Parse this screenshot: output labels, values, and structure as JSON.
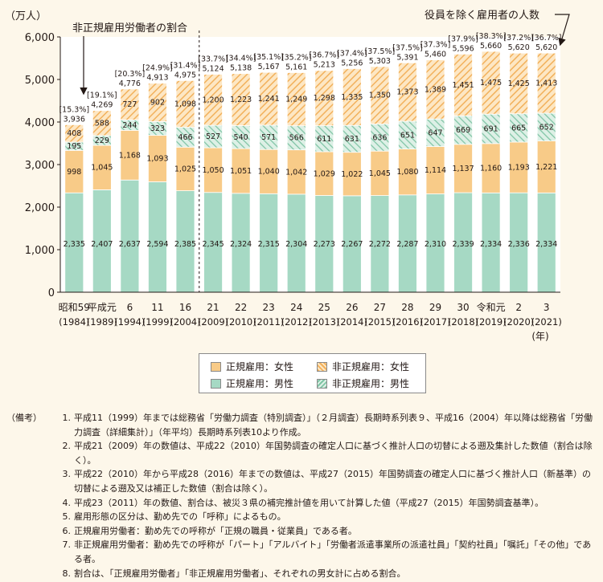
{
  "chart_data": {
    "type": "bar",
    "stacked": true,
    "ylabel": "（万人）",
    "xlabel_suffix": "(年)",
    "ylim": [
      0,
      6000
    ],
    "yticks": [
      "0",
      "1,000",
      "2,000",
      "3,000",
      "4,000",
      "5,000",
      "6,000"
    ],
    "grid": false,
    "categories": [
      [
        "昭和59",
        "(1984)"
      ],
      [
        "平成元",
        "(1989)"
      ],
      [
        "6",
        "(1994)"
      ],
      [
        "11",
        "(1999)"
      ],
      [
        "16",
        "(2004)"
      ],
      [
        "21",
        "(2009)"
      ],
      [
        "22",
        "(2010)"
      ],
      [
        "23",
        "(2011)"
      ],
      [
        "24",
        "(2012)"
      ],
      [
        "25",
        "(2013)"
      ],
      [
        "26",
        "(2014)"
      ],
      [
        "27",
        "(2015)"
      ],
      [
        "28",
        "(2016)"
      ],
      [
        "29",
        "(2017)"
      ],
      [
        "30",
        "(2018)"
      ],
      [
        "令和元",
        "(2019)"
      ],
      [
        "2",
        "(2020)"
      ],
      [
        "3",
        "(2021)"
      ]
    ],
    "series": [
      {
        "name": "正規雇用：男性",
        "color": "#a6d9c4",
        "pattern": "solid",
        "values": [
          2335,
          2407,
          2637,
          2594,
          2385,
          2345,
          2324,
          2315,
          2304,
          2273,
          2267,
          2272,
          2287,
          2310,
          2339,
          2334,
          2336,
          2334
        ],
        "labels": [
          "2,335",
          "2,407",
          "2,637",
          "2,594",
          "2,385",
          "2,345",
          "2,324",
          "2,315",
          "2,304",
          "2,273",
          "2,267",
          "2,272",
          "2,287",
          "2,310",
          "2,339",
          "2,334",
          "2,336",
          "2,334"
        ]
      },
      {
        "name": "正規雇用：女性",
        "color": "#f8cb88",
        "pattern": "solid",
        "values": [
          998,
          1045,
          1168,
          1093,
          1025,
          1050,
          1051,
          1040,
          1042,
          1029,
          1022,
          1045,
          1080,
          1114,
          1137,
          1160,
          1193,
          1221
        ],
        "labels": [
          "998",
          "1,045",
          "1,168",
          "1,093",
          "1,025",
          "1,050",
          "1,051",
          "1,040",
          "1,042",
          "1,029",
          "1,022",
          "1,045",
          "1,080",
          "1,114",
          "1,137",
          "1,160",
          "1,193",
          "1,221"
        ]
      },
      {
        "name": "非正規雇用：男性",
        "color": "#a6d9c4",
        "pattern": "hatch",
        "values": [
          195,
          229,
          244,
          323,
          466,
          527,
          540,
          571,
          566,
          611,
          631,
          636,
          651,
          647,
          669,
          691,
          665,
          652
        ],
        "labels": [
          "195",
          "229",
          "244",
          "323",
          "466",
          "527",
          "540",
          "571",
          "566",
          "611",
          "631",
          "636",
          "651",
          "647",
          "669",
          "691",
          "665",
          "652"
        ]
      },
      {
        "name": "非正規雇用：女性",
        "color": "#f8cb88",
        "pattern": "hatch",
        "values": [
          408,
          588,
          727,
          902,
          1098,
          1200,
          1223,
          1241,
          1249,
          1298,
          1335,
          1350,
          1373,
          1389,
          1451,
          1475,
          1425,
          1413
        ],
        "labels": [
          "408",
          "588",
          "727",
          "902",
          "1,098",
          "1,200",
          "1,223",
          "1,241",
          "1,249",
          "1,298",
          "1,335",
          "1,350",
          "1,373",
          "1,389",
          "1,451",
          "1,475",
          "1,425",
          "1,413"
        ]
      }
    ],
    "totals": [
      3936,
      4269,
      4776,
      4913,
      4975,
      5124,
      5138,
      5167,
      5161,
      5213,
      5256,
      5303,
      5391,
      5460,
      5596,
      5660,
      5620,
      5620
    ],
    "total_labels": [
      "3,936",
      "4,269",
      "4,776",
      "4,913",
      "4,975",
      "5,124",
      "5,138",
      "5,167",
      "5,161",
      "5,213",
      "5,256",
      "5,303",
      "5,391",
      "5,460",
      "5,596",
      "5,660",
      "5,620",
      "5,620"
    ],
    "ratio_labels": [
      "[15.3%]",
      "[19.1%]",
      "[20.3%]",
      "[24.9%]",
      "[31.4%]",
      "[33.7%]",
      "[34.4%]",
      "[35.1%]",
      "[35.2%]",
      "[36.7%]",
      "[37.4%]",
      "[37.5%]",
      "[37.5%]",
      "[37.3%]",
      "[37.9%]",
      "[38.3%]",
      "[37.2%]",
      "[36.7%]"
    ],
    "annotations": {
      "ratio": "非正規雇用労働者の割合",
      "total": "役員を除く雇用者の人数"
    },
    "divider_after_index": 4
  },
  "legend": {
    "items": [
      {
        "label": "正規雇用：女性",
        "color": "#f8cb88",
        "pattern": "solid"
      },
      {
        "label": "非正規雇用：女性",
        "color": "#f8cb88",
        "pattern": "hatch"
      },
      {
        "label": "正規雇用：男性",
        "color": "#a6d9c4",
        "pattern": "solid"
      },
      {
        "label": "非正規雇用：男性",
        "color": "#a6d9c4",
        "pattern": "hatch"
      }
    ]
  },
  "notes": {
    "heading": "（備考）",
    "items": [
      {
        "num": "1.",
        "text": "平成11（1999）年までは総務省「労働力調査（特別調査）」（２月調査）長期時系列表９、平成16（2004）年以降は総務省「労働力調査（詳細集計）」（年平均）長期時系列表10より作成。"
      },
      {
        "num": "2.",
        "text": "平成21（2009）年の数値は、平成22（2010）年国勢調査の確定人口に基づく推計人口の切替による遡及集計した数値（割合は除く）。"
      },
      {
        "num": "3.",
        "text": "平成22（2010）年から平成28（2016）年までの数値は、平成27（2015）年国勢調査の確定人口に基づく推計人口（新基準）の切替による遡及又は補正した数値（割合は除く）。"
      },
      {
        "num": "4.",
        "text": "平成23（2011）年の数値、割合は、被災３県の補完推計値を用いて計算した値（平成27（2015）年国勢調査基準）。"
      },
      {
        "num": "5.",
        "text": "雇用形態の区分は、勤め先での「呼称」によるもの。"
      },
      {
        "num": "6.",
        "text": "正規雇用労働者：勤め先での呼称が「正規の職員・従業員」である者。"
      },
      {
        "num": "7.",
        "text": "非正規雇用労働者：勤め先での呼称が「パート」「アルバイト」「労働者派遣事業所の派遣社員」「契約社員」「嘱託」「その他」である者。"
      },
      {
        "num": "8.",
        "text": "割合は、「正規雇用労働者」「非正規雇用労働者」、それぞれの男女計に占める割合。"
      }
    ]
  }
}
